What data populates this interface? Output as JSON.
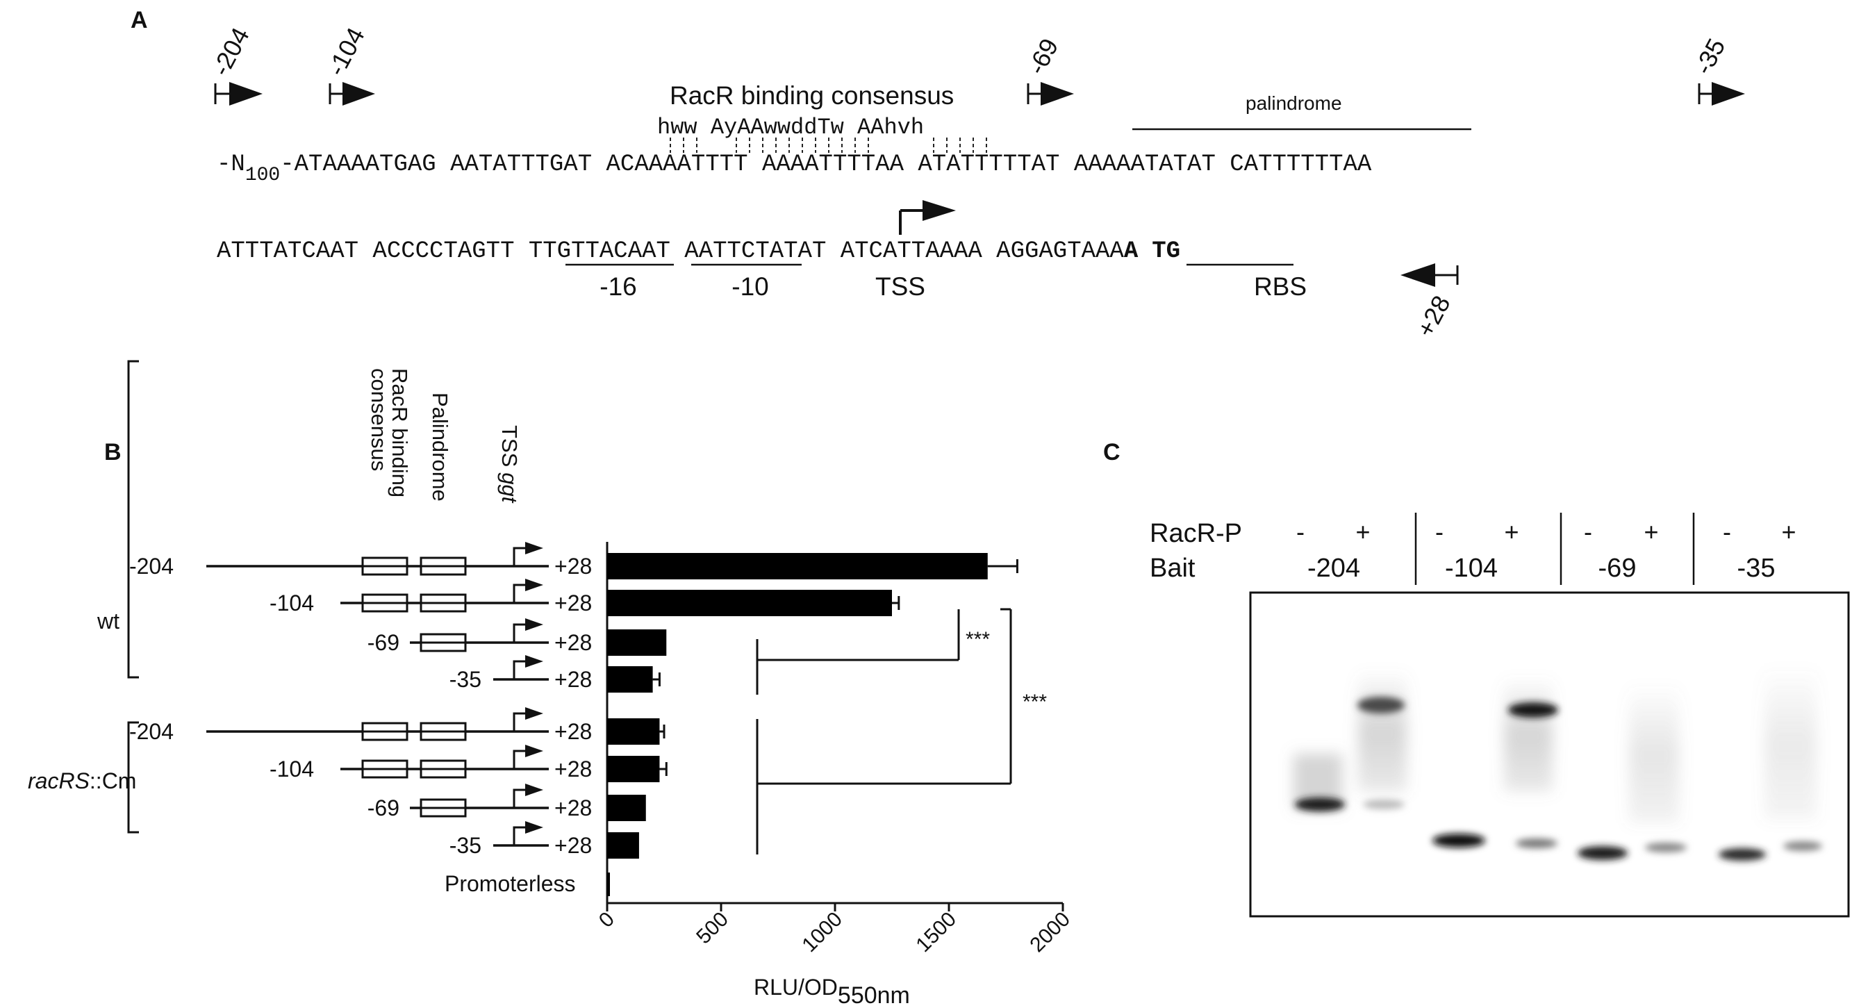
{
  "panels": {
    "a": "A",
    "b": "B",
    "c": "C"
  },
  "panel_a": {
    "primers_fwd": [
      "-204",
      "-104",
      "-69",
      "-35"
    ],
    "primer_rev": "+28",
    "consensus_title": "RacR binding consensus",
    "consensus_seq": "hww AyAAwwddTw AAhvh",
    "palindrome_label": "palindrome",
    "seq_line1": {
      "prefix_n": "-N",
      "prefix_sub": "100",
      "prefix_tail": "-ATAAAATGAG AATATTTGAT ACAAAATTTT AAAATTTTAA ATATTTTTAT AAAAATATAT CATTTTTTAA"
    },
    "seq_line2": {
      "main": "ATTTATCAAT ACCCCTAGTT TTGTTACAAT AATTCTATAT ATCATTAAAA AGGAGTAAA",
      "bold_a": "A",
      "bold_tg": "TG"
    },
    "features": {
      "m16": "-16",
      "m10": "-10",
      "tss": "TSS",
      "rbs": "RBS"
    }
  },
  "panel_b": {
    "col_headers": {
      "racr_line1": "RacR binding",
      "racr_line2": "consensus",
      "palindrome": "Palindrome",
      "tss": "TSS",
      "ggt": "ggt"
    },
    "groups": {
      "wt": "wt",
      "mutant_italic": "racRS",
      "mutant_rest": "::Cm"
    },
    "end_label": "+28",
    "promoterless": "Promoterless",
    "stars_1": "***",
    "stars_2": "***",
    "x_label_main": "RLU/OD",
    "x_label_sub": "550nm"
  },
  "chart_data": {
    "type": "bar",
    "orientation": "horizontal",
    "categories": [
      "wt -204",
      "wt -104",
      "wt -69",
      "wt -35",
      "racRS::Cm -204",
      "racRS::Cm -104",
      "racRS::Cm -69",
      "racRS::Cm -35",
      "Promoterless"
    ],
    "start_labels": [
      "-204",
      "-104",
      "-69",
      "-35",
      "-204",
      "-104",
      "-69",
      "-35",
      ""
    ],
    "values": [
      1670,
      1250,
      260,
      200,
      230,
      230,
      170,
      140,
      5
    ],
    "errors": [
      130,
      30,
      0,
      30,
      20,
      30,
      0,
      0,
      0
    ],
    "xlim": [
      0,
      2000
    ],
    "x_ticks": [
      "0",
      "500",
      "1000",
      "1500",
      "2000"
    ],
    "xlabel": "RLU/OD550nm",
    "significance": [
      "***",
      "***"
    ]
  },
  "panel_c": {
    "row_racr": "RacR-P",
    "row_bait": "Bait",
    "signs": [
      "-",
      "+",
      "-",
      "+",
      "-",
      "+",
      "-",
      "+"
    ],
    "baits": [
      "-204",
      "-104",
      "-69",
      "-35"
    ]
  }
}
